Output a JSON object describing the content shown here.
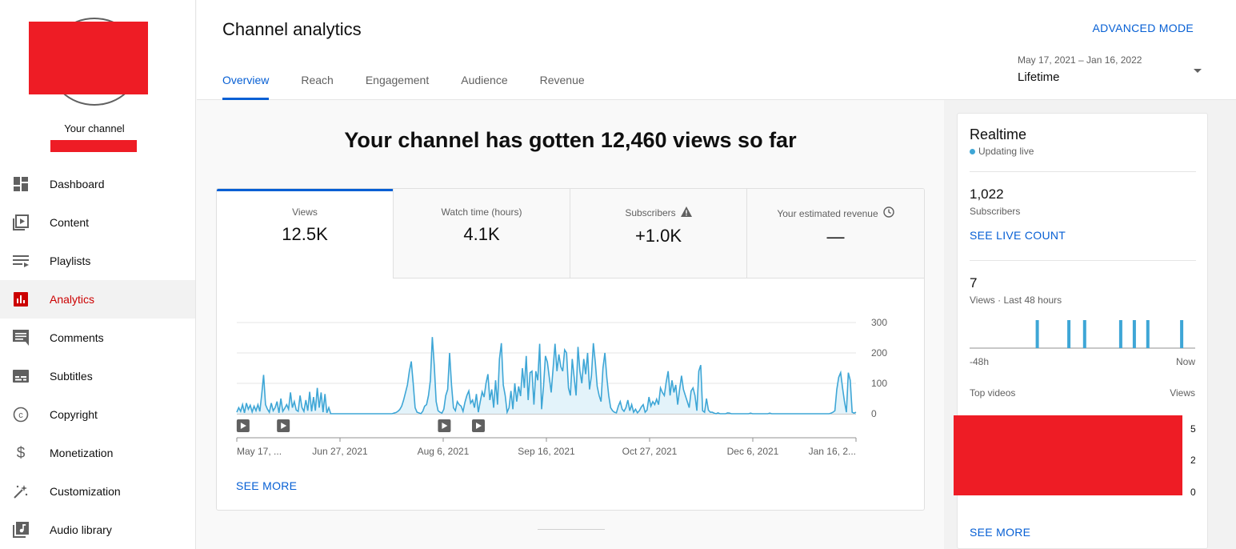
{
  "sidebar": {
    "channel_label": "Your channel",
    "items": [
      {
        "label": "Dashboard",
        "icon": "dashboard-icon"
      },
      {
        "label": "Content",
        "icon": "content-icon"
      },
      {
        "label": "Playlists",
        "icon": "playlists-icon"
      },
      {
        "label": "Analytics",
        "icon": "analytics-icon",
        "active": true
      },
      {
        "label": "Comments",
        "icon": "comments-icon"
      },
      {
        "label": "Subtitles",
        "icon": "subtitles-icon"
      },
      {
        "label": "Copyright",
        "icon": "copyright-icon"
      },
      {
        "label": "Monetization",
        "icon": "monetization-icon"
      },
      {
        "label": "Customization",
        "icon": "customization-icon"
      },
      {
        "label": "Audio library",
        "icon": "audio-library-icon"
      }
    ]
  },
  "header": {
    "title": "Channel analytics",
    "advanced_mode": "ADVANCED MODE",
    "tabs": [
      "Overview",
      "Reach",
      "Engagement",
      "Audience",
      "Revenue"
    ],
    "active_tab": "Overview",
    "date_range": "May 17, 2021 – Jan 16, 2022",
    "date_label": "Lifetime"
  },
  "main": {
    "headline": "Your channel has gotten 12,460 views so far",
    "metrics": [
      {
        "label": "Views",
        "value": "12.5K"
      },
      {
        "label": "Watch time (hours)",
        "value": "4.1K"
      },
      {
        "label": "Subscribers",
        "value": "+1.0K",
        "icon": "warning-icon"
      },
      {
        "label": "Your estimated revenue",
        "value": "—",
        "icon": "clock-icon"
      }
    ],
    "see_more": "SEE MORE"
  },
  "chart_data": {
    "type": "area",
    "series": [
      {
        "values": [
          5,
          20,
          8,
          30,
          3,
          35,
          15,
          28,
          6,
          25,
          10,
          30,
          8,
          65,
          128,
          30,
          15,
          5,
          35,
          10,
          20,
          40,
          3,
          50,
          8,
          18,
          30,
          15,
          70,
          20,
          40,
          12,
          8,
          60,
          20,
          8,
          45,
          10,
          72,
          8,
          55,
          10,
          85,
          20,
          70,
          5,
          65,
          3,
          20,
          0,
          0,
          0,
          0,
          0,
          0,
          0,
          0,
          0,
          0,
          0,
          0,
          0,
          0,
          0,
          0,
          0,
          0,
          0,
          0,
          0,
          0,
          0,
          0,
          0,
          0,
          0,
          0,
          0,
          0,
          0,
          0,
          0,
          2,
          4,
          8,
          14,
          25,
          45,
          70,
          95,
          140,
          172,
          100,
          20,
          5,
          3,
          0,
          8,
          25,
          30,
          60,
          110,
          252,
          160,
          40,
          10,
          5,
          2,
          15,
          60,
          80,
          200,
          95,
          20,
          10,
          40,
          30,
          25,
          8,
          38,
          60,
          75,
          35,
          45,
          20,
          65,
          5,
          40,
          72,
          55,
          100,
          130,
          45,
          80,
          20,
          110,
          30,
          180,
          232,
          95,
          60,
          5,
          20,
          75,
          15,
          100,
          40,
          90,
          58,
          150,
          85,
          190,
          45,
          135,
          140,
          30,
          140,
          110,
          230,
          15,
          90,
          190,
          170,
          120,
          70,
          150,
          230,
          140,
          195,
          155,
          140,
          210,
          200,
          85,
          60,
          180,
          120,
          60,
          220,
          140,
          100,
          180,
          130,
          200,
          80,
          125,
          232,
          170,
          90,
          60,
          40,
          150,
          200,
          120,
          60,
          20,
          10,
          5,
          3,
          25,
          40,
          15,
          8,
          20,
          45,
          10,
          30,
          5,
          15,
          3,
          10,
          22,
          30,
          5,
          12,
          55,
          25,
          40,
          30,
          48,
          30,
          85,
          70,
          60,
          105,
          140,
          60,
          110,
          70,
          95,
          30,
          80,
          125,
          80,
          60,
          40,
          20,
          75,
          85,
          60,
          10,
          140,
          160,
          10,
          5,
          50,
          12,
          5,
          5,
          2,
          0,
          3,
          0,
          0,
          0,
          0,
          3,
          2,
          0,
          0,
          0,
          0,
          0,
          0,
          0,
          0,
          0,
          0,
          2,
          0,
          0,
          0,
          0,
          0,
          0,
          0,
          0,
          0,
          2,
          0,
          0,
          0,
          0,
          0,
          0,
          0,
          0,
          0,
          0,
          0,
          0,
          0,
          0,
          0,
          0,
          0,
          0,
          0,
          0,
          0,
          0,
          0,
          0,
          0,
          0,
          0,
          0,
          0,
          0,
          0,
          2,
          5,
          10,
          80,
          120,
          135,
          85,
          40,
          5,
          135,
          110,
          5,
          2,
          5
        ]
      }
    ],
    "x_tick_labels": [
      "May 17, ...",
      "Jun 27, 2021",
      "Aug 6, 2021",
      "Sep 16, 2021",
      "Oct 27, 2021",
      "Dec 6, 2021",
      "Jan 16, 2..."
    ],
    "y_tick_labels": [
      "300",
      "200",
      "100",
      "0"
    ],
    "ylim": [
      0,
      300
    ],
    "line_color": "#3ea6d6",
    "fill_color": "#e3f3fa",
    "grid": true,
    "markers": [
      0.005,
      0.07,
      0.33,
      0.385
    ]
  },
  "realtime": {
    "title": "Realtime",
    "live_label": "Updating live",
    "subscribers_value": "1,022",
    "subscribers_label": "Subscribers",
    "see_live_count": "SEE LIVE COUNT",
    "views_value": "7",
    "views_label": "Views · Last 48 hours",
    "axis_left": "-48h",
    "axis_right": "Now",
    "bars": [
      0.3,
      0.44,
      0.51,
      0.67,
      0.73,
      0.79,
      0.94
    ],
    "top_videos_label": "Top videos",
    "views_col_label": "Views",
    "top_video_ticks": [
      "5",
      "2",
      "0"
    ],
    "see_more": "SEE MORE"
  }
}
